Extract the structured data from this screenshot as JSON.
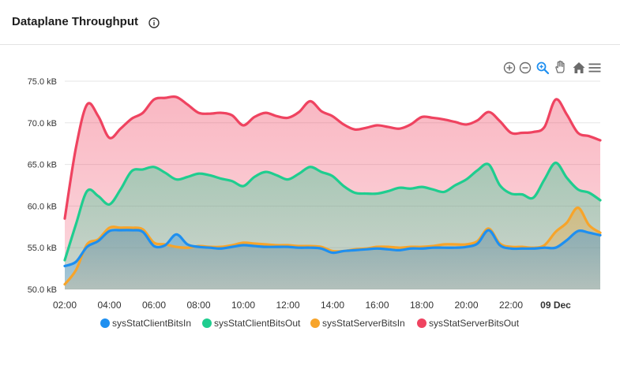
{
  "header": {
    "title": "Dataplane Throughput"
  },
  "toolbar": {
    "icons": [
      "zoom-in-icon",
      "zoom-out-icon",
      "selection-zoom-icon",
      "pan-icon",
      "home-icon",
      "menu-icon"
    ]
  },
  "colors": {
    "client_in": "#1e8ff0",
    "client_out": "#1fcd8f",
    "server_in": "#f7a42a",
    "server_out": "#ef4360",
    "active_tool": "#1e8ff0"
  },
  "chart_data": {
    "type": "area",
    "title": "",
    "xlabel": "",
    "ylabel": "",
    "ylim": [
      50,
      75
    ],
    "ytick_labels": [
      "50.0 kB",
      "55.0 kB",
      "60.0 kB",
      "65.0 kB",
      "70.0 kB",
      "75.0 kB"
    ],
    "ytick_values": [
      50,
      55,
      60,
      65,
      70,
      75
    ],
    "x_tick_labels": [
      "02:00",
      "04:00",
      "06:00",
      "08:00",
      "10:00",
      "12:00",
      "14:00",
      "16:00",
      "18:00",
      "20:00",
      "22:00",
      "09 Dec"
    ],
    "x_hours": [
      2,
      2.5,
      3,
      3.5,
      4,
      4.5,
      5,
      5.5,
      6,
      6.5,
      7,
      7.5,
      8,
      8.5,
      9,
      9.5,
      10,
      10.5,
      11,
      11.5,
      12,
      12.5,
      13,
      13.5,
      14,
      14.5,
      15,
      15.5,
      16,
      16.5,
      17,
      17.5,
      18,
      18.5,
      19,
      19.5,
      20,
      20.5,
      21,
      21.5,
      22,
      22.5,
      23,
      23.5,
      24,
      24.5,
      25,
      25.5,
      26
    ],
    "legend_position": "bottom",
    "grid": true,
    "series": [
      {
        "name": "sysStatClientBitsIn",
        "color": "#1e8ff0",
        "values": [
          52.8,
          53.3,
          55.1,
          55.8,
          57.0,
          57.1,
          57.1,
          56.9,
          55.2,
          55.3,
          56.6,
          55.4,
          55.1,
          55.0,
          54.9,
          55.1,
          55.3,
          55.2,
          55.1,
          55.1,
          55.1,
          55.0,
          55.0,
          54.9,
          54.4,
          54.6,
          54.7,
          54.8,
          54.9,
          54.8,
          54.7,
          54.9,
          54.9,
          55.0,
          55.0,
          55.0,
          55.1,
          55.5,
          57.1,
          55.3,
          54.9,
          54.9,
          54.9,
          55.0,
          55.0,
          55.9,
          57.0,
          56.8,
          56.5
        ]
      },
      {
        "name": "sysStatClientBitsOut",
        "color": "#1fcd8f",
        "values": [
          53.5,
          57.8,
          61.8,
          61.2,
          60.2,
          62.0,
          64.2,
          64.4,
          64.7,
          64.0,
          63.2,
          63.5,
          63.9,
          63.7,
          63.3,
          63.0,
          62.4,
          63.5,
          64.1,
          63.7,
          63.2,
          63.9,
          64.7,
          64.1,
          63.6,
          62.4,
          61.6,
          61.5,
          61.5,
          61.8,
          62.2,
          62.1,
          62.3,
          62.0,
          61.7,
          62.5,
          63.2,
          64.3,
          65.0,
          62.5,
          61.5,
          61.4,
          61.0,
          63.2,
          65.2,
          63.4,
          62.0,
          61.6,
          60.7
        ]
      },
      {
        "name": "sysStatServerBitsIn",
        "color": "#f7a42a",
        "values": [
          50.6,
          52.3,
          55.4,
          56.0,
          57.4,
          57.4,
          57.4,
          57.2,
          55.6,
          55.4,
          55.1,
          55.0,
          55.2,
          55.1,
          55.1,
          55.3,
          55.6,
          55.5,
          55.4,
          55.3,
          55.3,
          55.2,
          55.2,
          55.1,
          54.6,
          54.6,
          54.8,
          54.9,
          55.1,
          55.1,
          55.0,
          55.1,
          55.1,
          55.2,
          55.4,
          55.4,
          55.4,
          55.8,
          57.3,
          55.5,
          55.1,
          55.1,
          55.0,
          55.3,
          56.9,
          58.0,
          59.8,
          57.7,
          56.8
        ]
      },
      {
        "name": "sysStatServerBitsOut",
        "color": "#ef4360",
        "values": [
          58.5,
          67.0,
          72.2,
          70.8,
          68.2,
          69.3,
          70.5,
          71.2,
          72.8,
          73.0,
          73.1,
          72.2,
          71.2,
          71.1,
          71.2,
          70.9,
          69.7,
          70.7,
          71.2,
          70.8,
          70.6,
          71.3,
          72.6,
          71.4,
          70.8,
          69.8,
          69.2,
          69.4,
          69.7,
          69.5,
          69.3,
          69.8,
          70.7,
          70.6,
          70.4,
          70.1,
          69.8,
          70.3,
          71.3,
          70.2,
          68.8,
          68.8,
          68.9,
          69.5,
          72.8,
          71.0,
          68.8,
          68.4,
          67.9
        ]
      }
    ]
  }
}
